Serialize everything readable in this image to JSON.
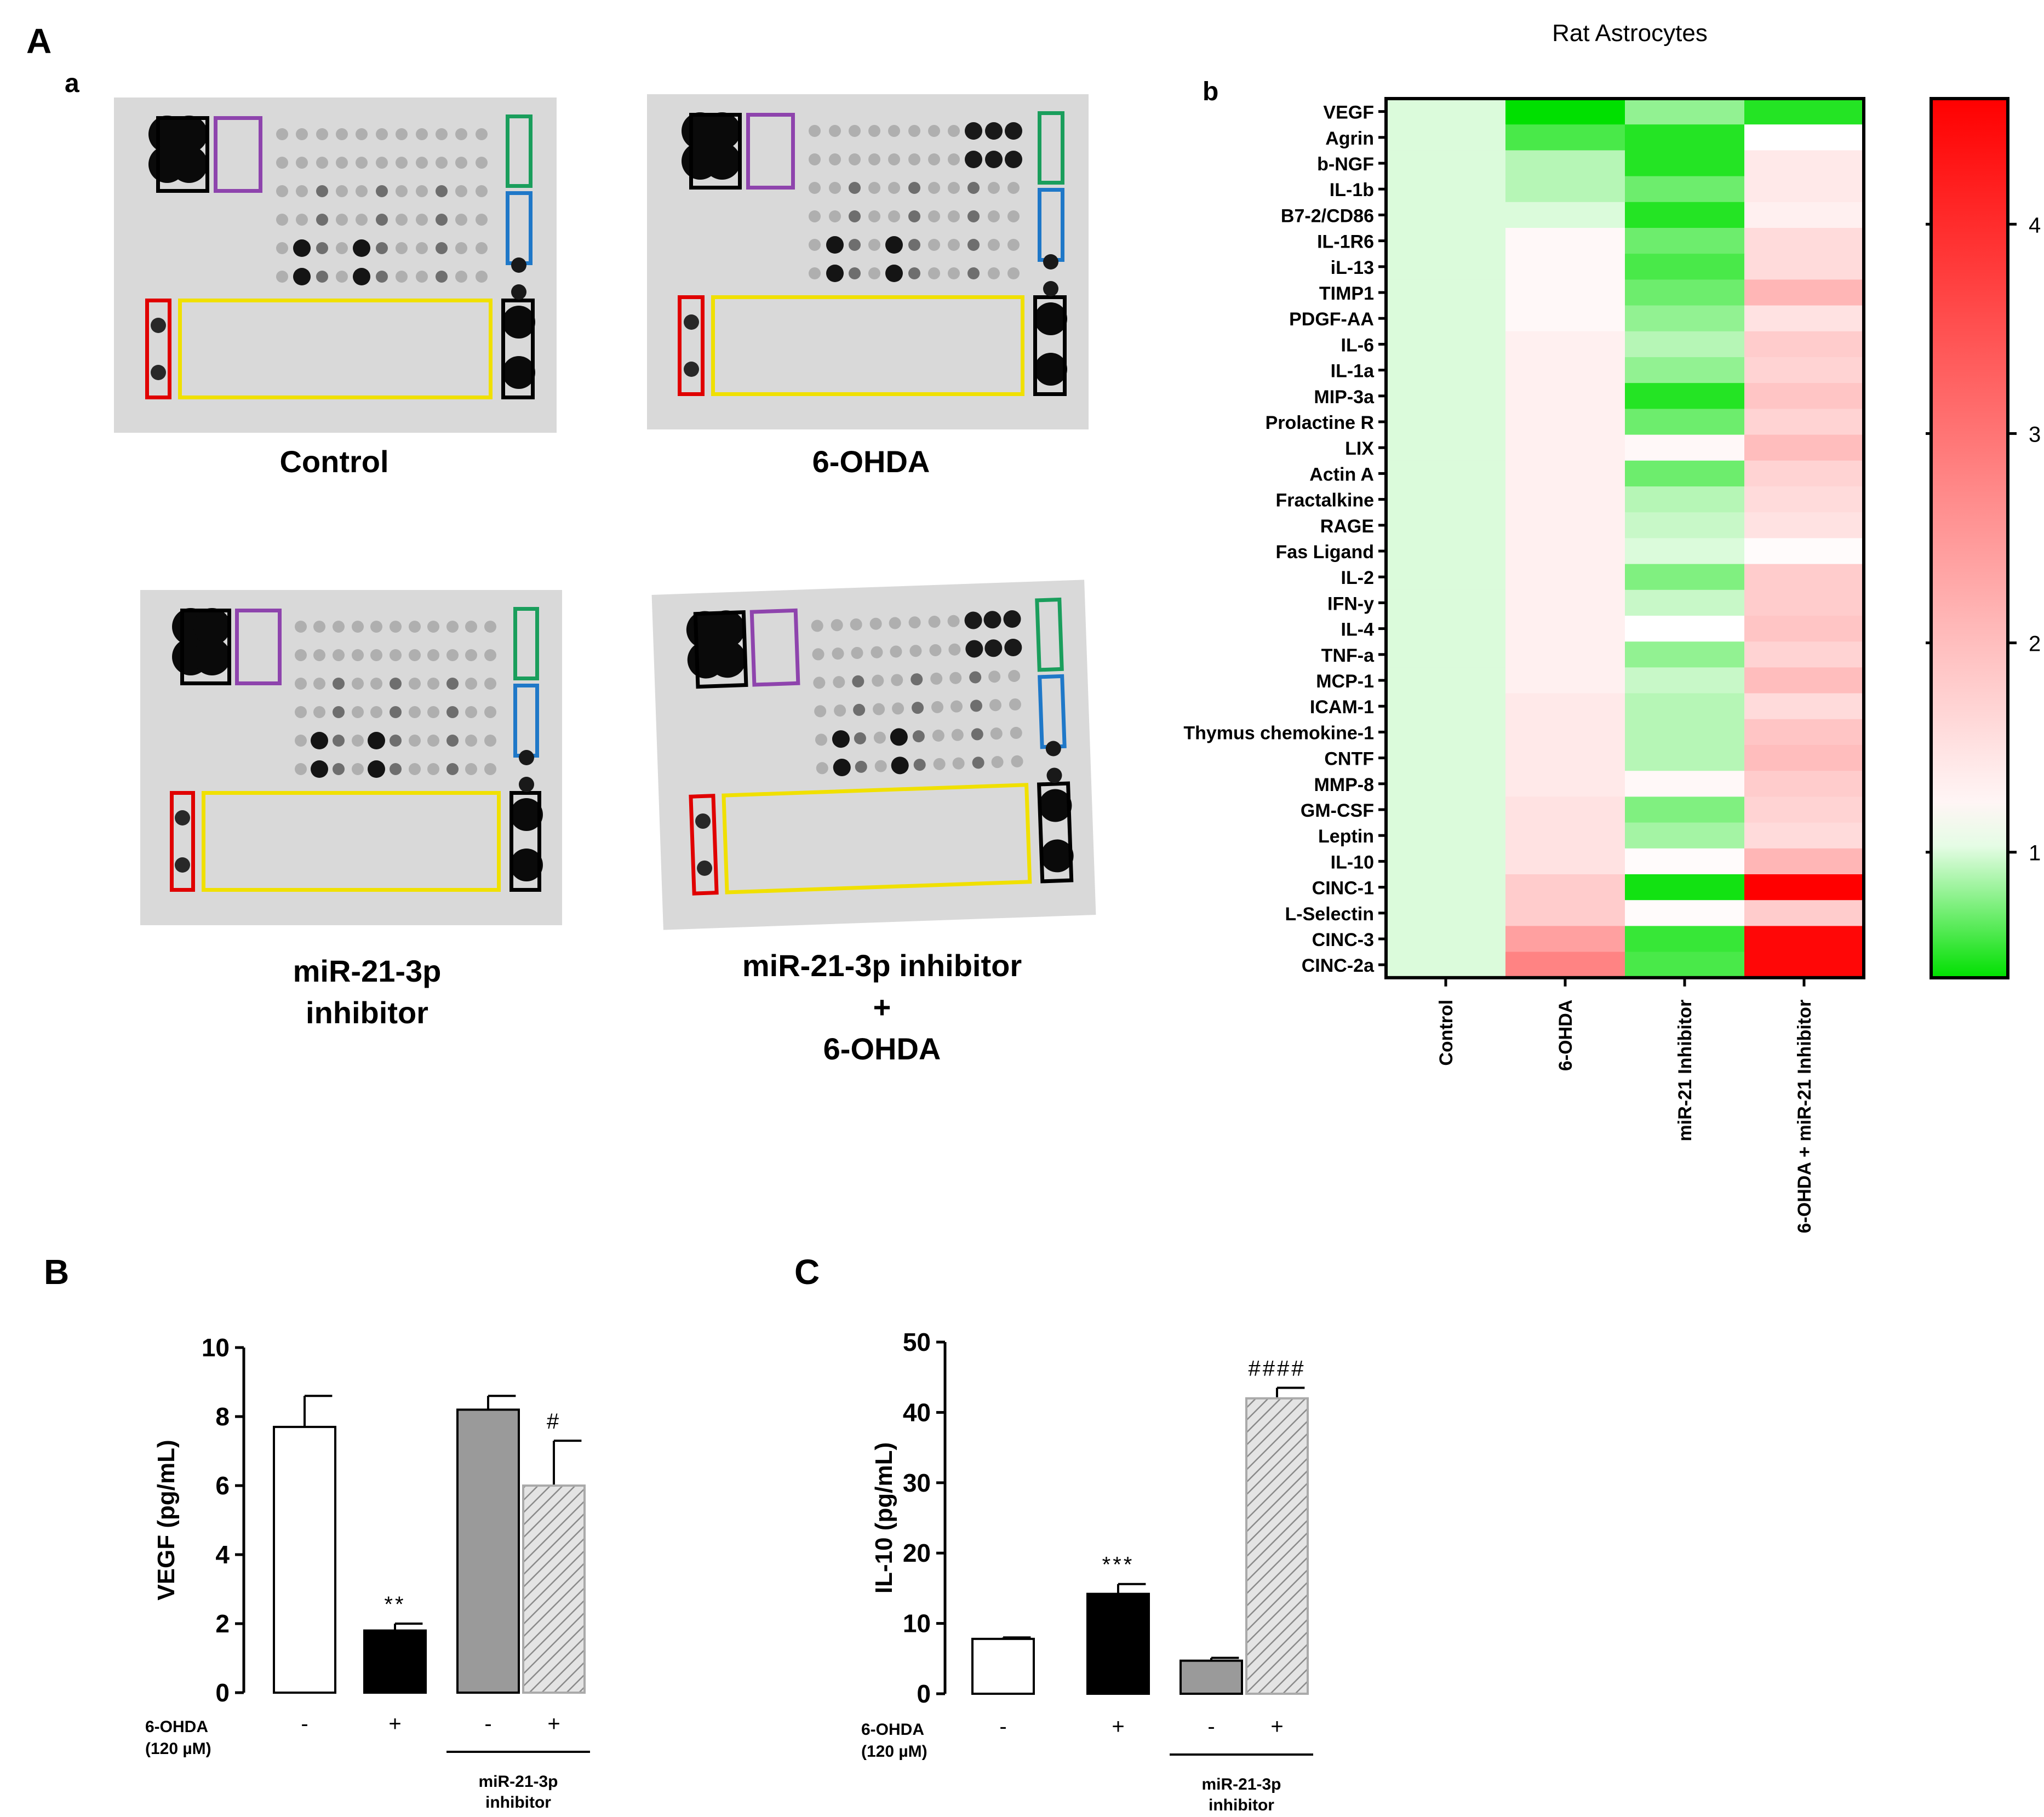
{
  "panels": {
    "A": "A",
    "a": "a",
    "b": "b",
    "B": "B",
    "C": "C"
  },
  "blots": [
    {
      "id": "control",
      "caption": [
        "Control"
      ]
    },
    {
      "id": "6ohda",
      "caption": [
        "6-OHDA"
      ]
    },
    {
      "id": "inhib",
      "caption": [
        "miR-21-3p",
        "inhibitor"
      ]
    },
    {
      "id": "inhib6",
      "caption": [
        "miR-21-3p inhibitor",
        "+",
        "6-OHDA"
      ]
    }
  ],
  "colors": {
    "green": "#00e000",
    "white": "#ffffff",
    "red": "#ff0000",
    "box_black": "#000000",
    "box_purple": "#8e44ad",
    "box_green": "#1a9e5c",
    "box_blue": "#1f78c8",
    "box_red": "#e00000",
    "box_yellow": "#f0e000"
  },
  "chart_data": [
    {
      "type": "heatmap",
      "title": "Rat Astrocytes",
      "rows": [
        "VEGF",
        "Agrin",
        "b-NGF",
        "IL-1b",
        "B7-2/CD86",
        "IL-1R6",
        "iL-13",
        "TIMP1",
        "PDGF-AA",
        "IL-6",
        "IL-1a",
        "MIP-3a",
        "Prolactine R",
        "LIX",
        "Actin A",
        "Fractalkine",
        "RAGE",
        "Fas Ligand",
        "IL-2",
        "IFN-y",
        "IL-4",
        "TNF-a",
        "MCP-1",
        "ICAM-1",
        "Thymus chemokine-1",
        "CNTF",
        "MMP-8",
        "GM-CSF",
        "Leptin",
        "IL-10",
        "CINC-1",
        "L-Selectin",
        "CINC-3",
        "CINC-2a"
      ],
      "columns": [
        "Control",
        "6-OHDA",
        "miR-21 Inhibitor",
        "6-OHDA + miR-21 Inhibitor"
      ],
      "values": [
        [
          1,
          0.4,
          0.8,
          0.5
        ],
        [
          1,
          0.6,
          0.5,
          1.1
        ],
        [
          1,
          0.9,
          0.5,
          1.4
        ],
        [
          1,
          0.9,
          0.7,
          1.4
        ],
        [
          1,
          1.0,
          0.5,
          1.3
        ],
        [
          1,
          1.2,
          0.7,
          1.6
        ],
        [
          1,
          1.2,
          0.6,
          1.6
        ],
        [
          1,
          1.2,
          0.7,
          2.1
        ],
        [
          1,
          1.2,
          0.8,
          1.5
        ],
        [
          1,
          1.3,
          0.9,
          1.8
        ],
        [
          1,
          1.3,
          0.8,
          1.7
        ],
        [
          1,
          1.3,
          0.5,
          1.9
        ],
        [
          1,
          1.3,
          0.7,
          1.7
        ],
        [
          1,
          1.3,
          1.2,
          2.0
        ],
        [
          1,
          1.3,
          0.7,
          1.7
        ],
        [
          1,
          1.3,
          0.9,
          1.6
        ],
        [
          1,
          1.3,
          0.95,
          1.5
        ],
        [
          1,
          1.3,
          1.0,
          1.15
        ],
        [
          1,
          1.3,
          0.75,
          1.8
        ],
        [
          1,
          1.3,
          0.95,
          1.8
        ],
        [
          1,
          1.3,
          1.1,
          1.9
        ],
        [
          1,
          1.3,
          0.8,
          1.7
        ],
        [
          1,
          1.3,
          0.95,
          2.0
        ],
        [
          1,
          1.4,
          0.9,
          1.6
        ],
        [
          1,
          1.4,
          0.9,
          1.9
        ],
        [
          1,
          1.4,
          0.9,
          2.0
        ],
        [
          1,
          1.4,
          1.2,
          1.8
        ],
        [
          1,
          1.5,
          0.75,
          1.7
        ],
        [
          1,
          1.5,
          0.85,
          1.6
        ],
        [
          1,
          1.5,
          1.15,
          2.1
        ],
        [
          1,
          1.8,
          0.45,
          4.6
        ],
        [
          1,
          1.8,
          1.15,
          1.8
        ],
        [
          1,
          2.4,
          0.55,
          4.5
        ],
        [
          1,
          2.8,
          0.6,
          4.5
        ]
      ],
      "colorbar": {
        "ticks": [
          1,
          2,
          3,
          4
        ],
        "range": [
          0.4,
          4.6
        ]
      }
    },
    {
      "type": "bar",
      "ylabel": "VEGF (pg/mL)",
      "ylim": [
        0,
        10
      ],
      "yticks": [
        0,
        2,
        4,
        6,
        8,
        10
      ],
      "treatment_label": [
        "6-OHDA",
        "(120 µM)"
      ],
      "treatment_signs": [
        "-",
        "+",
        "-",
        "+"
      ],
      "group_label": [
        "miR-21-3p",
        "inhibitor"
      ],
      "values": [
        7.7,
        1.8,
        8.2,
        6.0
      ],
      "errors": [
        0.9,
        0.2,
        0.4,
        1.3
      ],
      "annotations": [
        "",
        "**",
        "",
        "#"
      ],
      "fills": [
        "white",
        "black",
        "gray",
        "hatched"
      ]
    },
    {
      "type": "bar",
      "ylabel": "IL-10 (pg/mL)",
      "ylim": [
        0,
        50
      ],
      "yticks": [
        0,
        10,
        20,
        30,
        40,
        50
      ],
      "treatment_label": [
        "6-OHDA",
        "(120 µM)"
      ],
      "treatment_signs": [
        "-",
        "+",
        "-",
        "+"
      ],
      "group_label": [
        "miR-21-3p",
        "inhibitor"
      ],
      "values": [
        7.8,
        14.2,
        4.7,
        42.0
      ],
      "errors": [
        0.2,
        1.4,
        0.4,
        1.5
      ],
      "annotations": [
        "",
        "***",
        "",
        "####"
      ],
      "fills": [
        "white",
        "black",
        "gray",
        "hatched"
      ]
    }
  ]
}
